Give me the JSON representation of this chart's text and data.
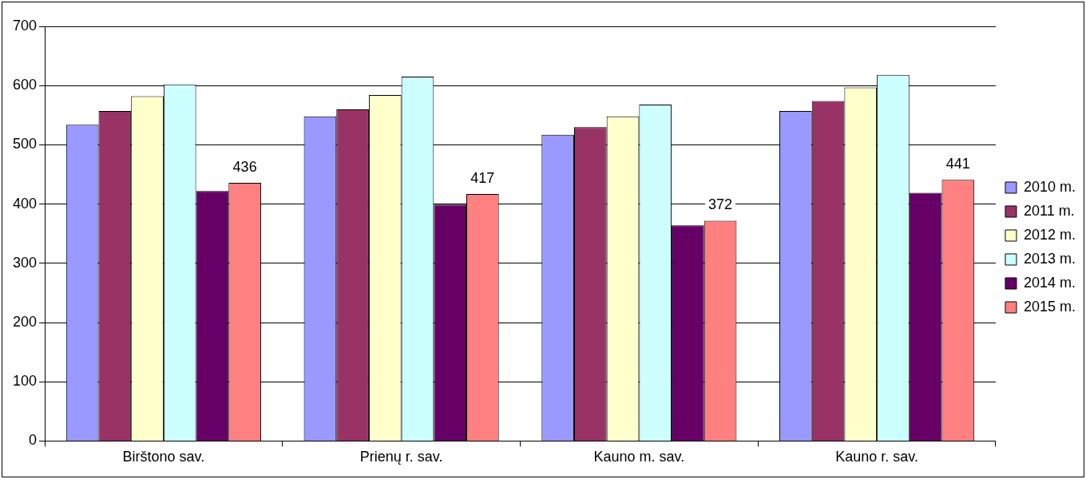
{
  "chart_data": {
    "type": "bar",
    "categories": [
      "Birštono sav.",
      "Prienų r. sav.",
      "Kauno m. sav.",
      "Kauno r. sav."
    ],
    "series": [
      {
        "name": "2010 m.",
        "color": "#9999ff",
        "values": [
          534,
          548,
          517,
          557
        ]
      },
      {
        "name": "2011 m.",
        "color": "#993366",
        "values": [
          557,
          560,
          530,
          574
        ]
      },
      {
        "name": "2012 m.",
        "color": "#ffffcc",
        "values": [
          582,
          584,
          548,
          597
        ]
      },
      {
        "name": "2013 m.",
        "color": "#ccffff",
        "values": [
          602,
          615,
          568,
          618
        ]
      },
      {
        "name": "2014 m.",
        "color": "#660066",
        "values": [
          422,
          399,
          364,
          419
        ]
      },
      {
        "name": "2015 m.",
        "color": "#ff8080",
        "values": [
          436,
          417,
          372,
          441
        ],
        "value_labels": [
          "436",
          "417",
          "372",
          "441"
        ]
      }
    ],
    "ylim": [
      0,
      700
    ],
    "yticks": [
      0,
      100,
      200,
      300,
      400,
      500,
      600,
      700
    ],
    "grid": "y",
    "legend": "right"
  }
}
